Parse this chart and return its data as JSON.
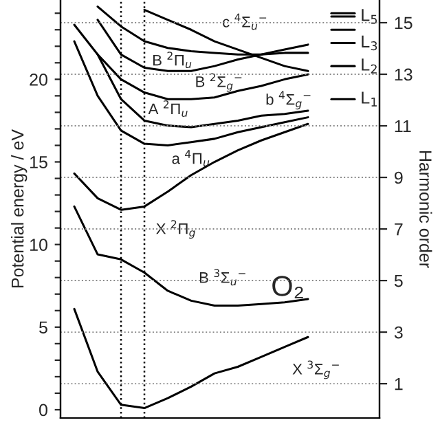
{
  "chart_data": {
    "type": "line",
    "ylabel": "Potential energy / eV",
    "y2label": "Harmonic order",
    "categories": [
      null,
      null,
      null,
      null,
      null,
      null,
      null,
      null,
      null,
      null,
      null,
      null,
      null
    ],
    "series": [
      {
        "name": "X $^{3}$Σ$_{g}$$^{−}$",
        "color": "#000000",
        "values": [
          6.1,
          2.3,
          0.3,
          0.1,
          0.7,
          1.4,
          2.2,
          2.6,
          3.2,
          3.8,
          4.4,
          null,
          null
        ]
      },
      {
        "name": "B $^{3}$Σ$_{u}$$^{−}$",
        "color": "#000000",
        "values": [
          12.3,
          9.4,
          9.1,
          8.3,
          7.2,
          6.6,
          6.3,
          6.3,
          6.4,
          6.5,
          6.7,
          null,
          null
        ]
      },
      {
        "name": "X $^{2}$Π$_{g}$",
        "color": "#000000",
        "values": [
          14.3,
          12.8,
          12.1,
          12.3,
          13.2,
          14.2,
          15.0,
          15.7,
          16.3,
          16.8,
          17.3,
          null,
          null
        ]
      },
      {
        "name": "a $^{4}$Π$_{u}$",
        "color": "#000000",
        "values": [
          22.3,
          19.0,
          16.9,
          16.1,
          16.0,
          16.2,
          16.4,
          16.8,
          17.1,
          17.4,
          17.7,
          null,
          null
        ]
      },
      {
        "name": "A $^{2}$Π$_{u}$",
        "color": "#000000",
        "values": [
          null,
          21.5,
          18.8,
          17.5,
          17.2,
          17.1,
          17.3,
          17.5,
          17.8,
          17.9,
          18.1,
          null,
          null
        ]
      },
      {
        "name": "b $^{4}$Σ$_{g}$$^{−}$",
        "color": "#000000",
        "values": [
          23.3,
          21.5,
          20.0,
          19.2,
          18.8,
          18.8,
          18.9,
          19.3,
          19.6,
          20.0,
          20.3,
          null,
          null
        ]
      },
      {
        "name": "B $^{2}$Σ$_{g}$$^{−}$",
        "color": "#000000",
        "values": [
          null,
          23.6,
          21.5,
          20.7,
          20.5,
          20.5,
          20.8,
          21.2,
          21.5,
          21.8,
          22.1,
          null,
          null
        ]
      },
      {
        "name": "B $^{2}$Π$_{u}$",
        "color": "#000000",
        "values": [
          null,
          24.4,
          23.2,
          22.3,
          21.9,
          21.7,
          21.6,
          21.5,
          21.5,
          21.6,
          21.6,
          null,
          null
        ]
      },
      {
        "name": "c $^{4}$Σ$_{u}$$^{−}$",
        "color": "#000000",
        "values": [
          null,
          null,
          null,
          24.2,
          23.6,
          23.0,
          22.3,
          21.8,
          21.3,
          20.8,
          20.5,
          null,
          null
        ]
      },
      {
        "color": "#000000",
        "values": [
          null,
          null,
          null,
          null,
          null,
          null,
          null,
          null,
          null,
          null,
          null,
          24.0,
          24.0
        ]
      },
      {
        "name": "L$_{5}$",
        "color": "#000000",
        "values": [
          null,
          null,
          null,
          null,
          null,
          null,
          null,
          null,
          null,
          null,
          null,
          23.8,
          23.8
        ]
      },
      {
        "color": "#000000",
        "values": [
          null,
          null,
          null,
          null,
          null,
          null,
          null,
          null,
          null,
          null,
          null,
          23.0,
          23.0
        ]
      },
      {
        "name": "L$_{3}$",
        "color": "#000000",
        "values": [
          null,
          null,
          null,
          null,
          null,
          null,
          null,
          null,
          null,
          null,
          null,
          22.2,
          22.2
        ]
      },
      {
        "name": "L$_{2}$",
        "color": "#000000",
        "values": [
          null,
          null,
          null,
          null,
          null,
          null,
          null,
          null,
          null,
          null,
          null,
          20.8,
          20.8
        ]
      },
      {
        "name": "L$_{1}$",
        "color": "#000000",
        "values": [
          null,
          null,
          null,
          null,
          null,
          null,
          null,
          null,
          null,
          null,
          null,
          18.8,
          18.8
        ]
      }
    ],
    "ylim": [
      -0.5,
      24.8
    ],
    "yticks": [
      0,
      {
        "value": 1,
        "label": null
      },
      {
        "value": 2,
        "label": null
      },
      {
        "value": 3,
        "label": null
      },
      {
        "value": 4,
        "label": null
      },
      5,
      {
        "value": 6,
        "label": null
      },
      {
        "value": 7,
        "label": null
      },
      {
        "value": 8,
        "label": null
      },
      {
        "value": 9,
        "label": null
      },
      10,
      {
        "value": 11,
        "label": null
      },
      {
        "value": 12,
        "label": null
      },
      {
        "value": 13,
        "label": null
      },
      {
        "value": 14,
        "label": null
      },
      15,
      {
        "value": 16,
        "label": null
      },
      {
        "value": 17,
        "label": null
      },
      {
        "value": 18,
        "label": null
      },
      {
        "value": 19,
        "label": null
      },
      20,
      {
        "value": 21,
        "label": null
      },
      {
        "value": 22,
        "label": null
      },
      {
        "value": 23,
        "label": null
      },
      {
        "value": 24,
        "label": null
      }
    ],
    "y2lim": [
      -0.33,
      15.88
    ],
    "y2ticks": [
      1,
      3,
      5,
      7,
      9,
      11,
      13,
      15
    ],
    "grid": "y2",
    "annotations": [
      "O₂"
    ]
  }
}
